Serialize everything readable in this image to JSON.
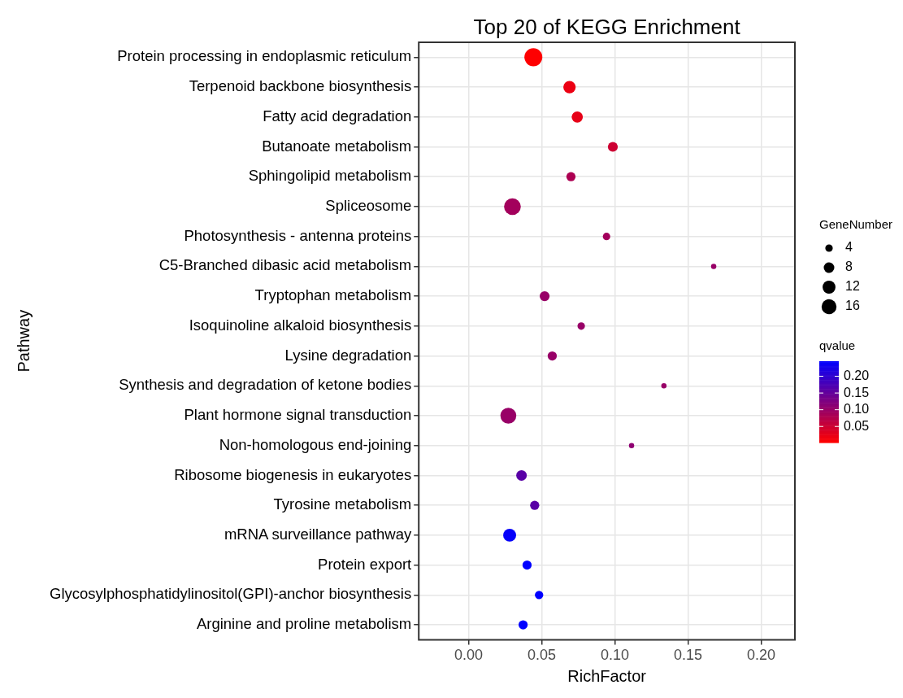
{
  "chart_data": {
    "type": "bubble",
    "orientation": "horizontal",
    "title": "Top 20 of KEGG Enrichment",
    "xlabel": "RichFactor",
    "ylabel": "Pathway",
    "categories": [
      "Protein processing in endoplasmic reticulum",
      "Terpenoid backbone biosynthesis",
      "Fatty acid degradation",
      "Butanoate metabolism",
      "Sphingolipid metabolism",
      "Spliceosome",
      "Photosynthesis - antenna proteins",
      "C5-Branched dibasic acid metabolism",
      "Tryptophan metabolism",
      "Isoquinoline alkaloid biosynthesis",
      "Lysine degradation",
      "Synthesis and degradation of ketone bodies",
      "Plant hormone signal transduction",
      "Non-homologous end-joining",
      "Ribosome biogenesis in eukaryotes",
      "Tyrosine metabolism",
      "mRNA surveillance pathway",
      "Protein export",
      "Glycosylphosphatidylinositol(GPI)-anchor biosynthesis",
      "Arginine and proline metabolism"
    ],
    "values": [
      0.0443,
      0.069,
      0.0743,
      0.0986,
      0.07,
      0.03,
      0.0943,
      0.1675,
      0.052,
      0.077,
      0.0572,
      0.1335,
      0.0272,
      0.1114,
      0.0362,
      0.0452,
      0.0281,
      0.04,
      0.0482,
      0.0373
    ],
    "sizes": [
      23,
      11,
      9,
      7,
      6,
      20,
      4,
      2,
      7,
      4,
      6,
      2,
      18,
      2,
      8,
      6,
      12,
      6,
      5,
      6
    ],
    "cvalues": [
      0.003,
      0.02,
      0.025,
      0.05,
      0.08,
      0.09,
      0.09,
      0.1,
      0.1,
      0.1,
      0.1,
      0.1,
      0.1,
      0.11,
      0.16,
      0.16,
      0.24,
      0.245,
      0.245,
      0.245
    ],
    "size_legend": [
      4,
      8,
      12,
      16
    ],
    "legend_title": "GeneNumber",
    "clabel": "qvalue",
    "clim": [
      0.002,
      0.245
    ],
    "cticks": [
      {
        "value": 0.05,
        "label": "0.05"
      },
      {
        "value": 0.1,
        "label": "0.10"
      },
      {
        "value": 0.15,
        "label": "0.15"
      },
      {
        "value": 0.2,
        "label": "0.20"
      }
    ],
    "xlim": [
      -0.034,
      0.223
    ],
    "xticks": [
      {
        "value": 0,
        "label": "0.00"
      },
      {
        "value": 0.05,
        "label": "0.05"
      },
      {
        "value": 0.1,
        "label": "0.10"
      },
      {
        "value": 0.15,
        "label": "0.15"
      },
      {
        "value": 0.2,
        "label": "0.20"
      }
    ],
    "grid": true,
    "marker": "circle"
  }
}
